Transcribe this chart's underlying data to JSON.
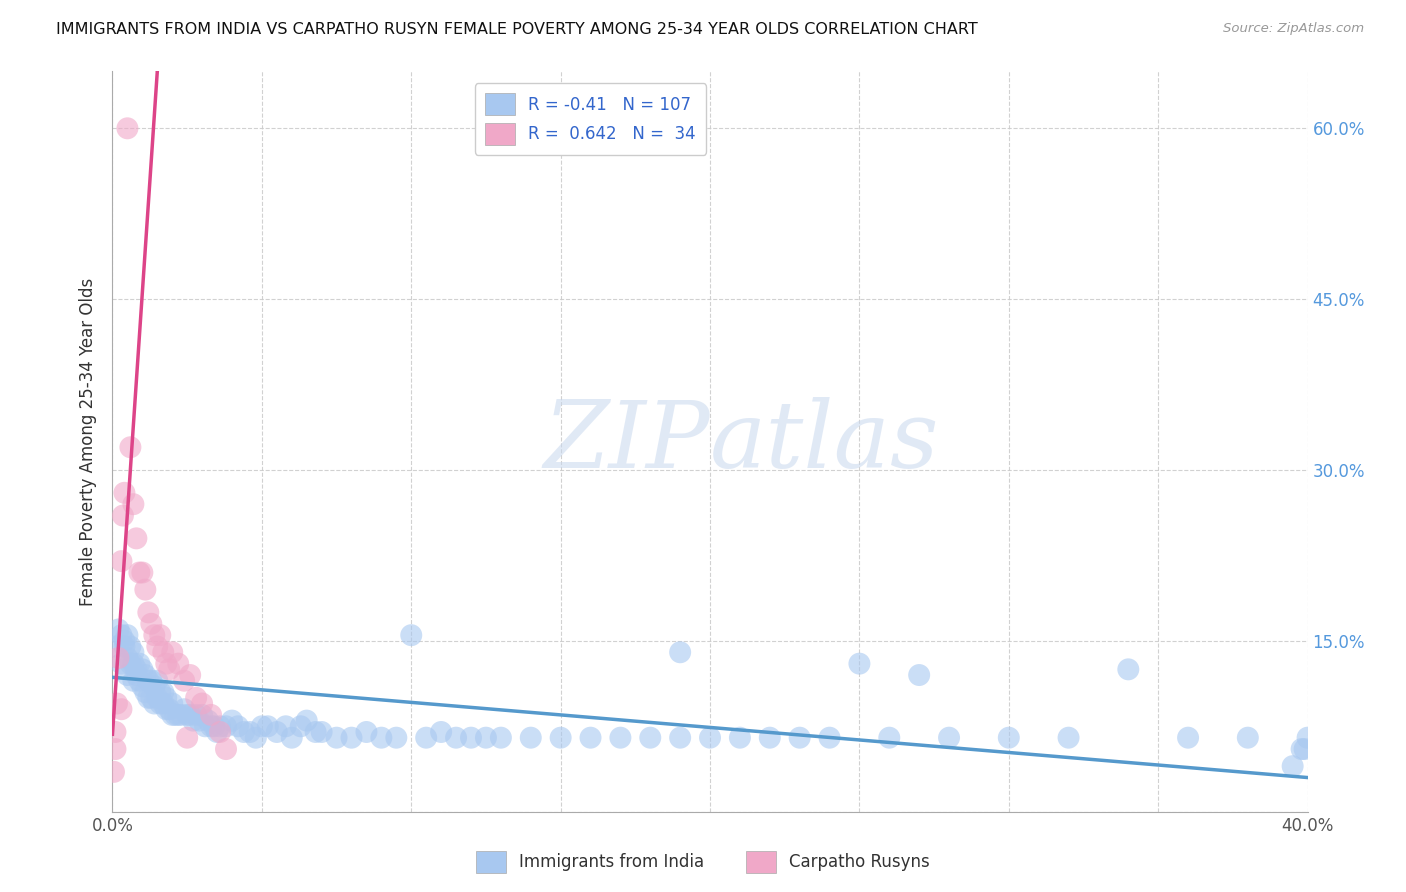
{
  "title": "IMMIGRANTS FROM INDIA VS CARPATHO RUSYN FEMALE POVERTY AMONG 25-34 YEAR OLDS CORRELATION CHART",
  "source": "Source: ZipAtlas.com",
  "ylabel": "Female Poverty Among 25-34 Year Olds",
  "xlim": [
    0.0,
    0.4
  ],
  "ylim": [
    0.0,
    0.65
  ],
  "blue_R": -0.41,
  "blue_N": 107,
  "pink_R": 0.642,
  "pink_N": 34,
  "blue_color": "#a8c8f0",
  "pink_color": "#f0a8c8",
  "blue_line_color": "#5599cc",
  "pink_line_color": "#dd4488",
  "watermark_zip": "ZIP",
  "watermark_atlas": "atlas",
  "legend_label_blue": "Immigrants from India",
  "legend_label_pink": "Carpatho Rusyns",
  "blue_line_x0": 0.0,
  "blue_line_y0": 0.118,
  "blue_line_x1": 0.4,
  "blue_line_y1": 0.03,
  "pink_line_x0": 0.0,
  "pink_line_y0": 0.068,
  "pink_line_x1": 0.015,
  "pink_line_y1": 0.65,
  "blue_scatter_x": [
    0.001,
    0.002,
    0.003,
    0.003,
    0.004,
    0.004,
    0.005,
    0.005,
    0.005,
    0.006,
    0.006,
    0.007,
    0.007,
    0.007,
    0.008,
    0.008,
    0.009,
    0.009,
    0.01,
    0.01,
    0.011,
    0.011,
    0.012,
    0.012,
    0.013,
    0.013,
    0.014,
    0.014,
    0.015,
    0.015,
    0.016,
    0.016,
    0.017,
    0.017,
    0.018,
    0.018,
    0.019,
    0.02,
    0.02,
    0.021,
    0.022,
    0.023,
    0.024,
    0.025,
    0.026,
    0.027,
    0.028,
    0.029,
    0.03,
    0.031,
    0.032,
    0.033,
    0.034,
    0.035,
    0.036,
    0.038,
    0.04,
    0.042,
    0.044,
    0.046,
    0.048,
    0.05,
    0.052,
    0.055,
    0.058,
    0.06,
    0.063,
    0.065,
    0.068,
    0.07,
    0.075,
    0.08,
    0.085,
    0.09,
    0.095,
    0.1,
    0.105,
    0.11,
    0.115,
    0.12,
    0.125,
    0.13,
    0.14,
    0.15,
    0.16,
    0.17,
    0.18,
    0.19,
    0.2,
    0.21,
    0.22,
    0.23,
    0.24,
    0.26,
    0.28,
    0.3,
    0.32,
    0.34,
    0.36,
    0.38,
    0.395,
    0.398,
    0.399,
    0.4,
    0.19,
    0.25,
    0.27
  ],
  "blue_scatter_y": [
    0.145,
    0.16,
    0.13,
    0.155,
    0.145,
    0.15,
    0.12,
    0.135,
    0.155,
    0.13,
    0.145,
    0.115,
    0.13,
    0.14,
    0.12,
    0.125,
    0.115,
    0.13,
    0.11,
    0.125,
    0.105,
    0.12,
    0.1,
    0.115,
    0.1,
    0.115,
    0.095,
    0.11,
    0.1,
    0.115,
    0.095,
    0.105,
    0.095,
    0.105,
    0.09,
    0.1,
    0.09,
    0.085,
    0.095,
    0.085,
    0.085,
    0.085,
    0.09,
    0.085,
    0.085,
    0.08,
    0.085,
    0.08,
    0.085,
    0.075,
    0.08,
    0.075,
    0.075,
    0.07,
    0.075,
    0.075,
    0.08,
    0.075,
    0.07,
    0.07,
    0.065,
    0.075,
    0.075,
    0.07,
    0.075,
    0.065,
    0.075,
    0.08,
    0.07,
    0.07,
    0.065,
    0.065,
    0.07,
    0.065,
    0.065,
    0.155,
    0.065,
    0.07,
    0.065,
    0.065,
    0.065,
    0.065,
    0.065,
    0.065,
    0.065,
    0.065,
    0.065,
    0.065,
    0.065,
    0.065,
    0.065,
    0.065,
    0.065,
    0.065,
    0.065,
    0.065,
    0.065,
    0.125,
    0.065,
    0.065,
    0.04,
    0.055,
    0.055,
    0.065,
    0.14,
    0.13,
    0.12
  ],
  "pink_scatter_x": [
    0.0005,
    0.001,
    0.0015,
    0.002,
    0.003,
    0.0035,
    0.004,
    0.005,
    0.006,
    0.007,
    0.008,
    0.009,
    0.01,
    0.011,
    0.012,
    0.013,
    0.014,
    0.015,
    0.016,
    0.017,
    0.018,
    0.019,
    0.02,
    0.022,
    0.024,
    0.026,
    0.028,
    0.03,
    0.033,
    0.036,
    0.001,
    0.003,
    0.025,
    0.038
  ],
  "pink_scatter_y": [
    0.035,
    0.07,
    0.095,
    0.135,
    0.22,
    0.26,
    0.28,
    0.6,
    0.32,
    0.27,
    0.24,
    0.21,
    0.21,
    0.195,
    0.175,
    0.165,
    0.155,
    0.145,
    0.155,
    0.14,
    0.13,
    0.125,
    0.14,
    0.13,
    0.115,
    0.12,
    0.1,
    0.095,
    0.085,
    0.07,
    0.055,
    0.09,
    0.065,
    0.055
  ]
}
